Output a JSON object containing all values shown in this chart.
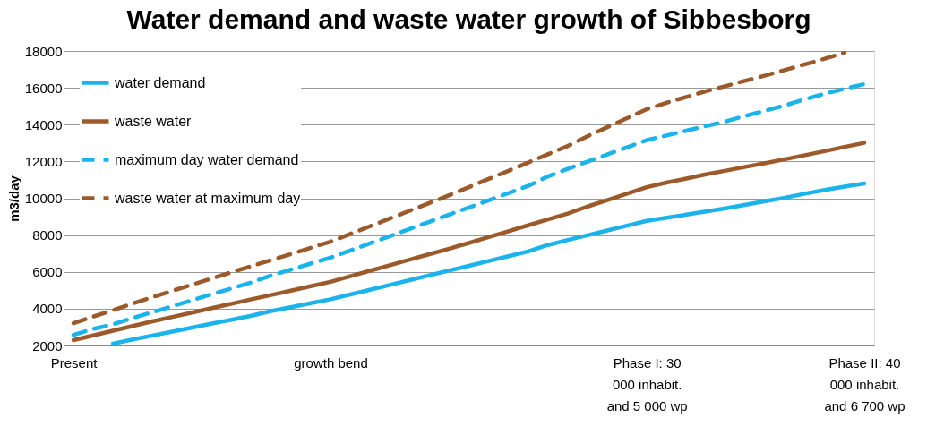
{
  "chart_data": {
    "type": "line",
    "title": "Water demand and waste water growth of Sibbesborg",
    "ylabel": "m3/day",
    "categories": [
      "Present",
      null,
      null,
      null,
      null,
      null,
      null,
      null,
      null,
      null,
      null,
      null,
      null,
      "growth bend",
      null,
      null,
      null,
      null,
      null,
      null,
      null,
      null,
      null,
      null,
      null,
      null,
      null,
      null,
      null,
      "Phase I: 30 000 inhabit. and 5 000 wp",
      null,
      null,
      null,
      null,
      null,
      null,
      null,
      null,
      null,
      null,
      "Phase II: 40 000 inhabit. and 6 700 wp"
    ],
    "series": [
      {
        "name": "water demand",
        "color": "#1ab3ec",
        "line_style": "solid",
        "values": [
          null,
          null,
          2100,
          2330,
          2540,
          2750,
          2970,
          3190,
          3400,
          3620,
          3870,
          4080,
          4300,
          4510,
          4770,
          5030,
          5290,
          5550,
          5810,
          6070,
          6330,
          6590,
          6850,
          7110,
          7460,
          7730,
          7990,
          8250,
          8510,
          8770,
          8940,
          9110,
          9280,
          9450,
          9650,
          9840,
          10030,
          10250,
          10450,
          10630,
          10800
        ]
      },
      {
        "name": "waste water",
        "color": "#9c5a2a",
        "line_style": "solid",
        "values": [
          2290,
          2550,
          2800,
          3060,
          3310,
          3550,
          3790,
          4030,
          4270,
          4510,
          4740,
          4980,
          5220,
          5460,
          5760,
          6060,
          6360,
          6660,
          6960,
          7260,
          7570,
          7890,
          8210,
          8530,
          8850,
          9170,
          9550,
          9900,
          10250,
          10600,
          10850,
          11070,
          11300,
          11500,
          11710,
          11910,
          12120,
          12340,
          12560,
          12790,
          13010
        ]
      },
      {
        "name": "maximum day water demand",
        "color": "#1ab3ec",
        "line_style": "dashed",
        "values": [
          2580,
          2900,
          3150,
          3500,
          3810,
          4130,
          4460,
          4790,
          5100,
          5430,
          5810,
          6120,
          6450,
          6770,
          7160,
          7550,
          7940,
          8330,
          8720,
          9110,
          9500,
          9890,
          10280,
          10670,
          11190,
          11600,
          11990,
          12380,
          12770,
          13160,
          13410,
          13670,
          13920,
          14180,
          14480,
          14760,
          15050,
          15380,
          15680,
          15950,
          16200
        ]
      },
      {
        "name": "waste water at maximum day",
        "color": "#9c5a2a",
        "line_style": "dashed",
        "values": [
          3210,
          3570,
          3920,
          4280,
          4630,
          4970,
          5310,
          5640,
          5980,
          6310,
          6640,
          6970,
          7310,
          7640,
          8060,
          8480,
          8900,
          9320,
          9740,
          10160,
          10600,
          11050,
          11490,
          11940,
          12390,
          12840,
          13370,
          13860,
          14350,
          14840,
          15190,
          15500,
          15820,
          16100,
          16390,
          16670,
          16970,
          17280,
          17580,
          17910,
          null
        ]
      }
    ],
    "ylim": [
      2000,
      18000
    ],
    "yticks": [
      2000,
      4000,
      6000,
      8000,
      10000,
      12000,
      14000,
      16000,
      18000
    ],
    "grid": "y",
    "legend": "top left",
    "marker": "none"
  }
}
